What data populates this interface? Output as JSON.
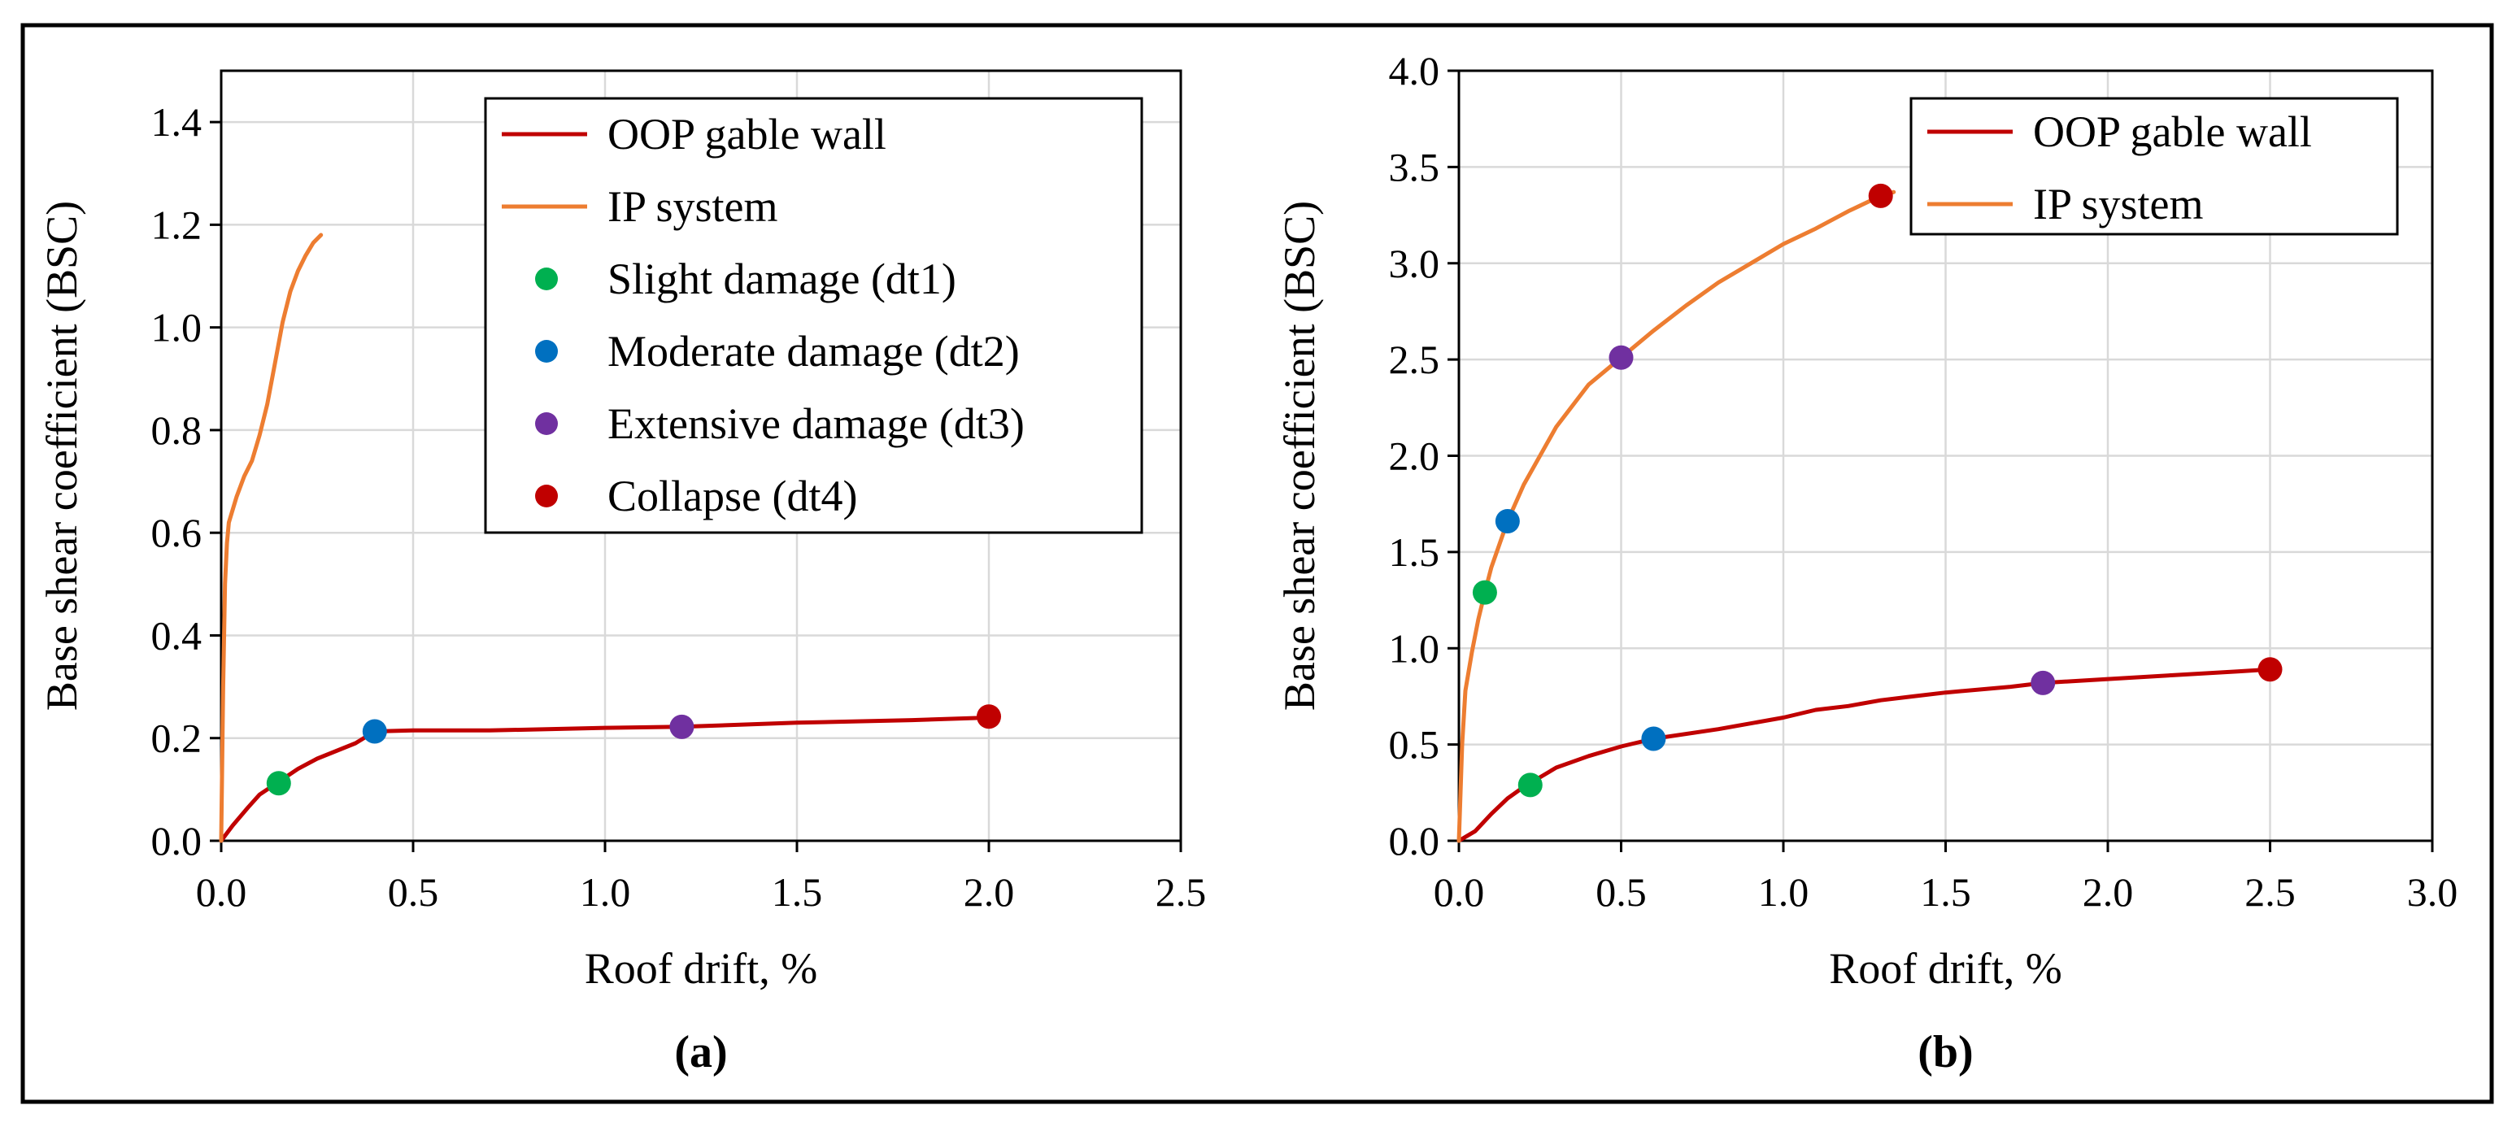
{
  "figure": {
    "panels": [
      {
        "label": "(a)"
      },
      {
        "label": "(b)"
      }
    ]
  },
  "colors": {
    "oop": "#C00000",
    "ip": "#ED7D31",
    "dt1": "#00B050",
    "dt2": "#0070C0",
    "dt3": "#7030A0",
    "dt4": "#C00000"
  },
  "chart_data": [
    {
      "type": "line",
      "panel_label": "(a)",
      "xlabel": "Roof drift, %",
      "ylabel": "Base shear coefficient  (BSC)",
      "xlim": [
        0,
        2.5
      ],
      "ylim": [
        0,
        1.5
      ],
      "xticks": [
        "0.0",
        "0.5",
        "1.0",
        "1.5",
        "2.0",
        "2.5"
      ],
      "yticks": [
        "0.0",
        "0.2",
        "0.4",
        "0.6",
        "0.8",
        "1.0",
        "1.2",
        "1.4"
      ],
      "legend_position": "top-right",
      "legend": [
        {
          "label": "OOP gable wall",
          "kind": "line",
          "color_key": "oop"
        },
        {
          "label": "IP system",
          "kind": "line",
          "color_key": "ip"
        },
        {
          "label": "Slight damage (dt1)",
          "kind": "marker",
          "color_key": "dt1"
        },
        {
          "label": "Moderate damage (dt2)",
          "kind": "marker",
          "color_key": "dt2"
        },
        {
          "label": "Extensive damage (dt3)",
          "kind": "marker",
          "color_key": "dt3"
        },
        {
          "label": "Collapse (dt4)",
          "kind": "marker",
          "color_key": "dt4"
        }
      ],
      "series": [
        {
          "name": "OOP gable wall",
          "color_key": "oop",
          "points": [
            [
              0,
              0
            ],
            [
              0.03,
              0.03
            ],
            [
              0.07,
              0.065
            ],
            [
              0.1,
              0.09
            ],
            [
              0.15,
              0.115
            ],
            [
              0.2,
              0.14
            ],
            [
              0.25,
              0.16
            ],
            [
              0.3,
              0.175
            ],
            [
              0.35,
              0.19
            ],
            [
              0.4,
              0.213
            ],
            [
              0.5,
              0.215
            ],
            [
              0.7,
              0.215
            ],
            [
              1.0,
              0.22
            ],
            [
              1.2,
              0.222
            ],
            [
              1.5,
              0.23
            ],
            [
              1.8,
              0.235
            ],
            [
              2.0,
              0.24
            ]
          ]
        },
        {
          "name": "IP system",
          "color_key": "ip",
          "points": [
            [
              0,
              0
            ],
            [
              0.005,
              0.3
            ],
            [
              0.01,
              0.5
            ],
            [
              0.015,
              0.58
            ],
            [
              0.02,
              0.62
            ],
            [
              0.04,
              0.67
            ],
            [
              0.06,
              0.71
            ],
            [
              0.08,
              0.74
            ],
            [
              0.1,
              0.79
            ],
            [
              0.12,
              0.85
            ],
            [
              0.14,
              0.93
            ],
            [
              0.16,
              1.01
            ],
            [
              0.18,
              1.07
            ],
            [
              0.2,
              1.11
            ],
            [
              0.22,
              1.14
            ],
            [
              0.24,
              1.165
            ],
            [
              0.26,
              1.18
            ]
          ]
        }
      ],
      "damage_states": [
        {
          "name": "Slight damage (dt1)",
          "color_key": "dt1",
          "x": 0.15,
          "y": 0.112
        },
        {
          "name": "Moderate damage (dt2)",
          "color_key": "dt2",
          "x": 0.4,
          "y": 0.213
        },
        {
          "name": "Extensive damage (dt3)",
          "color_key": "dt3",
          "x": 1.2,
          "y": 0.222
        },
        {
          "name": "Collapse (dt4)",
          "color_key": "dt4",
          "x": 2.0,
          "y": 0.242
        }
      ]
    },
    {
      "type": "line",
      "panel_label": "(b)",
      "xlabel": "Roof drift, %",
      "ylabel": "Base shear coefficient  (BSC)",
      "xlim": [
        0,
        3.0
      ],
      "ylim": [
        0,
        4.0
      ],
      "xticks": [
        "0.0",
        "0.5",
        "1.0",
        "1.5",
        "2.0",
        "2.5",
        "3.0"
      ],
      "yticks": [
        "0.0",
        "0.5",
        "1.0",
        "1.5",
        "2.0",
        "2.5",
        "3.0",
        "3.5",
        "4.0"
      ],
      "legend_position": "top-right",
      "legend": [
        {
          "label": "OOP gable wall",
          "kind": "line",
          "color_key": "oop"
        },
        {
          "label": "IP system",
          "kind": "line",
          "color_key": "ip"
        }
      ],
      "series": [
        {
          "name": "OOP gable wall",
          "color_key": "oop",
          "points": [
            [
              0,
              0
            ],
            [
              0.05,
              0.05
            ],
            [
              0.1,
              0.14
            ],
            [
              0.15,
              0.22
            ],
            [
              0.2,
              0.28
            ],
            [
              0.25,
              0.33
            ],
            [
              0.3,
              0.38
            ],
            [
              0.4,
              0.44
            ],
            [
              0.5,
              0.49
            ],
            [
              0.6,
              0.53
            ],
            [
              0.8,
              0.58
            ],
            [
              1.0,
              0.64
            ],
            [
              1.1,
              0.68
            ],
            [
              1.2,
              0.7
            ],
            [
              1.3,
              0.73
            ],
            [
              1.4,
              0.75
            ],
            [
              1.5,
              0.77
            ],
            [
              1.7,
              0.8
            ],
            [
              1.8,
              0.82
            ],
            [
              2.0,
              0.84
            ],
            [
              2.2,
              0.86
            ],
            [
              2.4,
              0.88
            ],
            [
              2.5,
              0.89
            ]
          ]
        },
        {
          "name": "IP system",
          "color_key": "ip",
          "points": [
            [
              0,
              0
            ],
            [
              0.01,
              0.5
            ],
            [
              0.02,
              0.78
            ],
            [
              0.04,
              0.98
            ],
            [
              0.06,
              1.15
            ],
            [
              0.08,
              1.29
            ],
            [
              0.1,
              1.42
            ],
            [
              0.15,
              1.66
            ],
            [
              0.2,
              1.85
            ],
            [
              0.3,
              2.15
            ],
            [
              0.4,
              2.37
            ],
            [
              0.5,
              2.51
            ],
            [
              0.6,
              2.65
            ],
            [
              0.7,
              2.78
            ],
            [
              0.8,
              2.9
            ],
            [
              0.9,
              3.0
            ],
            [
              1.0,
              3.1
            ],
            [
              1.1,
              3.18
            ],
            [
              1.2,
              3.27
            ],
            [
              1.3,
              3.35
            ],
            [
              1.34,
              3.37
            ]
          ]
        }
      ],
      "damage_states": [
        {
          "name": "Slight damage (dt1) - IP",
          "color_key": "dt1",
          "x": 0.08,
          "y": 1.29
        },
        {
          "name": "Moderate damage (dt2) - IP",
          "color_key": "dt2",
          "x": 0.15,
          "y": 1.66
        },
        {
          "name": "Extensive damage (dt3) - IP",
          "color_key": "dt3",
          "x": 0.5,
          "y": 2.51
        },
        {
          "name": "Collapse (dt4) - IP",
          "color_key": "dt4",
          "x": 1.3,
          "y": 3.35
        },
        {
          "name": "Slight damage (dt1) - OOP",
          "color_key": "dt1",
          "x": 0.22,
          "y": 0.29
        },
        {
          "name": "Moderate damage (dt2) - OOP",
          "color_key": "dt2",
          "x": 0.6,
          "y": 0.53
        },
        {
          "name": "Extensive damage (dt3) - OOP",
          "color_key": "dt3",
          "x": 1.8,
          "y": 0.82
        },
        {
          "name": "Collapse (dt4) - OOP",
          "color_key": "dt4",
          "x": 2.5,
          "y": 0.89
        }
      ]
    }
  ]
}
